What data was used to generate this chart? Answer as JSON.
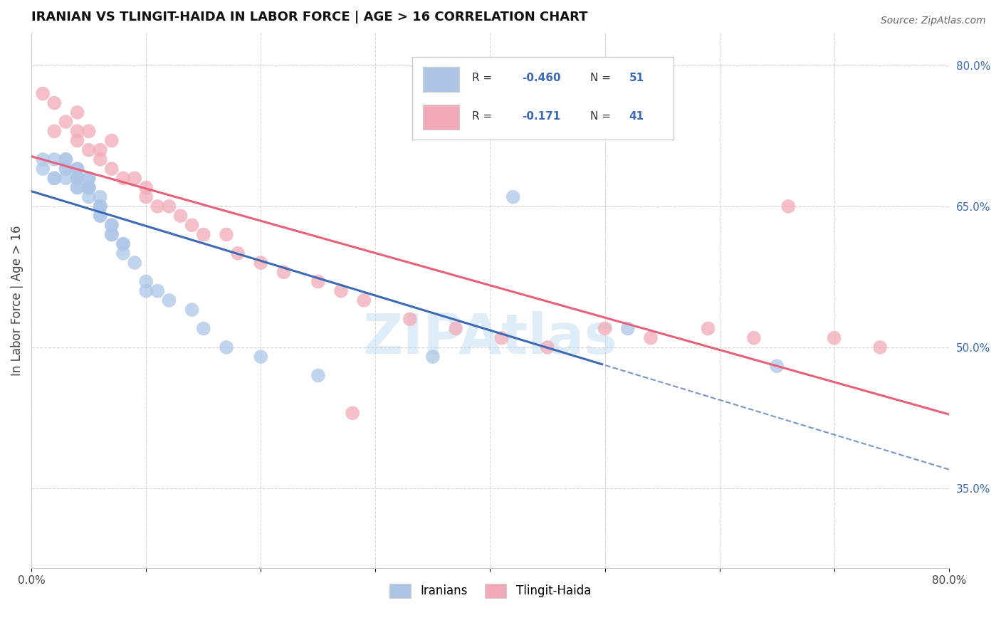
{
  "title": "IRANIAN VS TLINGIT-HAIDA IN LABOR FORCE | AGE > 16 CORRELATION CHART",
  "source": "Source: ZipAtlas.com",
  "ylabel": "In Labor Force | Age > 16",
  "xlim": [
    0.0,
    0.8
  ],
  "ylim": [
    0.265,
    0.835
  ],
  "right_ytick_positions": [
    0.35,
    0.5,
    0.65,
    0.8
  ],
  "right_ytick_labels": [
    "35.0%",
    "50.0%",
    "65.0%",
    "80.0%"
  ],
  "color_iranian": "#adc6e8",
  "color_tlingit": "#f2aab8",
  "line_color_iranian": "#3d6ab5",
  "line_color_tlingit": "#e8607a",
  "background_color": "#ffffff",
  "grid_color": "#c8c8c8",
  "iranians_x": [
    0.01,
    0.01,
    0.02,
    0.02,
    0.02,
    0.03,
    0.03,
    0.03,
    0.03,
    0.03,
    0.04,
    0.04,
    0.04,
    0.04,
    0.04,
    0.04,
    0.04,
    0.05,
    0.05,
    0.05,
    0.05,
    0.05,
    0.05,
    0.05,
    0.06,
    0.06,
    0.06,
    0.06,
    0.06,
    0.06,
    0.07,
    0.07,
    0.07,
    0.07,
    0.08,
    0.08,
    0.08,
    0.09,
    0.1,
    0.1,
    0.11,
    0.12,
    0.14,
    0.15,
    0.17,
    0.2,
    0.25,
    0.35,
    0.42,
    0.52,
    0.65
  ],
  "iranians_y": [
    0.69,
    0.7,
    0.7,
    0.68,
    0.68,
    0.7,
    0.7,
    0.69,
    0.69,
    0.68,
    0.69,
    0.69,
    0.68,
    0.68,
    0.67,
    0.67,
    0.68,
    0.68,
    0.67,
    0.67,
    0.68,
    0.67,
    0.67,
    0.66,
    0.66,
    0.65,
    0.65,
    0.64,
    0.64,
    0.65,
    0.63,
    0.63,
    0.62,
    0.62,
    0.61,
    0.61,
    0.6,
    0.59,
    0.57,
    0.56,
    0.56,
    0.55,
    0.54,
    0.52,
    0.5,
    0.49,
    0.47,
    0.49,
    0.66,
    0.52,
    0.48
  ],
  "tlingit_x": [
    0.01,
    0.02,
    0.02,
    0.03,
    0.04,
    0.04,
    0.04,
    0.05,
    0.05,
    0.06,
    0.06,
    0.07,
    0.07,
    0.08,
    0.09,
    0.1,
    0.1,
    0.11,
    0.12,
    0.13,
    0.14,
    0.15,
    0.17,
    0.18,
    0.2,
    0.22,
    0.25,
    0.27,
    0.29,
    0.33,
    0.37,
    0.41,
    0.45,
    0.5,
    0.54,
    0.59,
    0.63,
    0.66,
    0.7,
    0.74,
    0.28
  ],
  "tlingit_y": [
    0.77,
    0.76,
    0.73,
    0.74,
    0.75,
    0.73,
    0.72,
    0.73,
    0.71,
    0.71,
    0.7,
    0.72,
    0.69,
    0.68,
    0.68,
    0.67,
    0.66,
    0.65,
    0.65,
    0.64,
    0.63,
    0.62,
    0.62,
    0.6,
    0.59,
    0.58,
    0.57,
    0.56,
    0.55,
    0.53,
    0.52,
    0.51,
    0.5,
    0.52,
    0.51,
    0.52,
    0.51,
    0.65,
    0.51,
    0.5,
    0.43
  ]
}
